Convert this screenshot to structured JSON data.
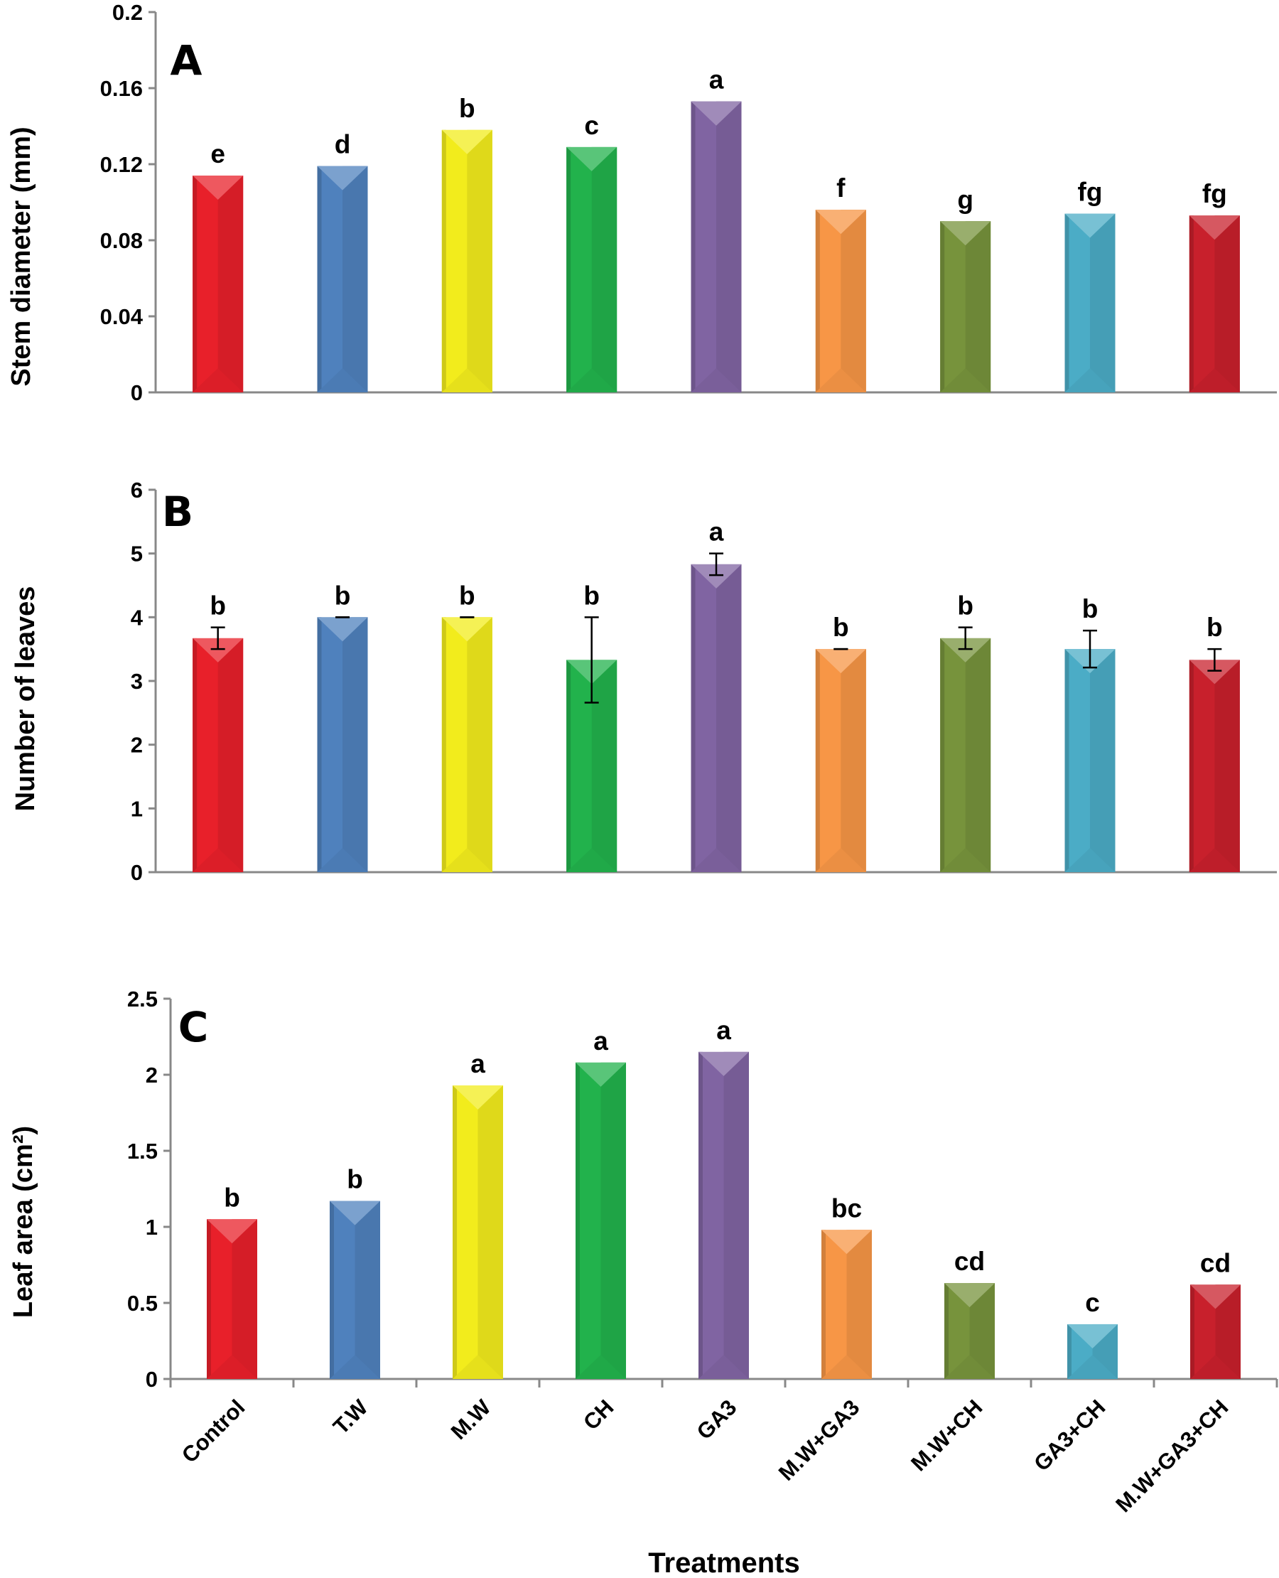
{
  "chart_data": [
    {
      "type": "bar",
      "panel": "A",
      "ylabel": "Stem diameter (mm)",
      "ylim": [
        0,
        0.2
      ],
      "yticks": [
        "0",
        "0.04",
        "0.08",
        "0.12",
        "0.16",
        "0.2"
      ],
      "categories": [
        "Control",
        "T.W",
        "M.W",
        "CH",
        "GA3",
        "M.W+GA3",
        "M.W+CH",
        "GA3+CH",
        "M.W+GA3+CH"
      ],
      "values": [
        0.114,
        0.119,
        0.138,
        0.129,
        0.153,
        0.096,
        0.09,
        0.094,
        0.093
      ],
      "letters": [
        "e",
        "d",
        "b",
        "c",
        "a",
        "f",
        "g",
        "fg",
        "fg"
      ]
    },
    {
      "type": "bar",
      "panel": "B",
      "ylabel": "Number of leaves",
      "ylim": [
        0,
        6
      ],
      "yticks": [
        "0",
        "1",
        "2",
        "3",
        "4",
        "5",
        "6"
      ],
      "categories": [
        "Control",
        "T.W",
        "M.W",
        "CH",
        "GA3",
        "M.W+GA3",
        "M.W+CH",
        "GA3+CH",
        "M.W+GA3+CH"
      ],
      "values": [
        3.67,
        4.0,
        4.0,
        3.33,
        4.83,
        3.5,
        3.67,
        3.5,
        3.33
      ],
      "errors": [
        0.17,
        0,
        0,
        0.67,
        0.17,
        0,
        0.17,
        0.29,
        0.17
      ],
      "letters": [
        "b",
        "b",
        "b",
        "b",
        "a",
        "b",
        "b",
        "b",
        "b"
      ]
    },
    {
      "type": "bar",
      "panel": "C",
      "ylabel": "Leaf area (cm²)",
      "xlabel": "Treatments",
      "ylim": [
        0,
        2.5
      ],
      "yticks": [
        "0",
        "0.5",
        "1",
        "1.5",
        "2",
        "2.5"
      ],
      "categories": [
        "Control",
        "T.W",
        "M.W",
        "CH",
        "GA3",
        "M.W+GA3",
        "M.W+CH",
        "GA3+CH",
        "M.W+GA3+CH"
      ],
      "values": [
        1.05,
        1.17,
        1.93,
        2.08,
        2.15,
        0.98,
        0.63,
        0.36,
        0.62
      ],
      "letters": [
        "b",
        "b",
        "a",
        "a",
        "a",
        "bc",
        "cd",
        "c",
        "cd"
      ]
    }
  ],
  "colors": [
    "#e8202a",
    "#4f81bd",
    "#f2ec1c",
    "#22b24c",
    "#8064a2",
    "#f79646",
    "#77933c",
    "#4bacc6",
    "#c8202c"
  ]
}
